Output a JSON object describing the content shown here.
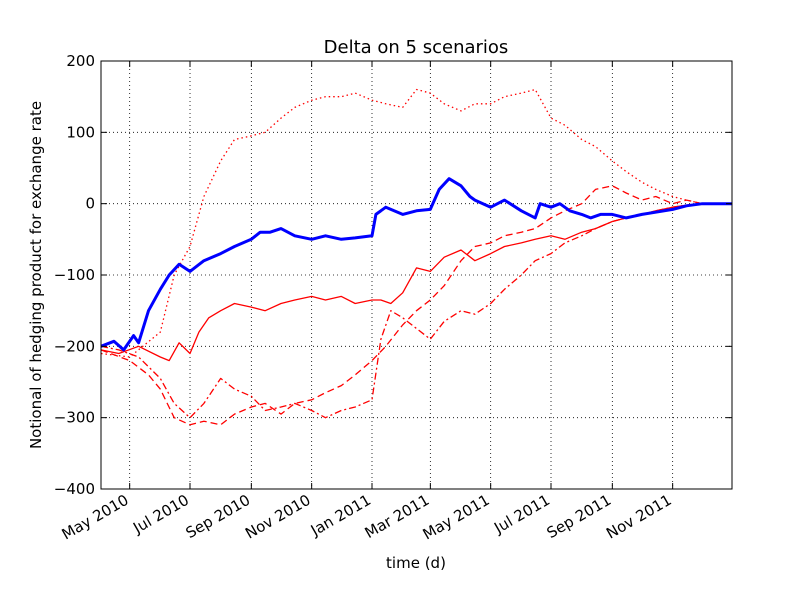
{
  "chart_data": {
    "type": "line",
    "title": "Delta on 5 scenarios",
    "xlabel": "time (d)",
    "ylabel": "Notional of hedging product for exchange rate",
    "x_axis": {
      "type": "date",
      "range": [
        "2010-04-02",
        "2011-12-31"
      ],
      "tick_values": [
        "2010-05-01",
        "2010-07-01",
        "2010-09-01",
        "2010-11-01",
        "2011-01-01",
        "2011-03-01",
        "2011-05-01",
        "2011-07-01",
        "2011-09-01",
        "2011-11-01"
      ],
      "tick_labels": [
        "May 2010",
        "Jul 2010",
        "Sep 2010",
        "Nov 2010",
        "Jan 2011",
        "Mar 2011",
        "May 2011",
        "Jul 2011",
        "Sep 2011",
        "Nov 2011"
      ]
    },
    "y_axis": {
      "range": [
        -400,
        200
      ],
      "tick_values": [
        -400,
        -300,
        -200,
        -100,
        0,
        100,
        200
      ],
      "tick_labels": [
        "−400",
        "−300",
        "−200",
        "−100",
        "0",
        "100",
        "200"
      ]
    },
    "grid": true,
    "series": [
      {
        "color": "#0000ff",
        "style": "solid",
        "width": 3,
        "x": [
          "2010-04-02",
          "2010-04-15",
          "2010-04-25",
          "2010-05-05",
          "2010-05-10",
          "2010-05-20",
          "2010-06-01",
          "2010-06-10",
          "2010-06-20",
          "2010-07-01",
          "2010-07-15",
          "2010-08-01",
          "2010-08-15",
          "2010-09-01",
          "2010-09-10",
          "2010-09-20",
          "2010-10-01",
          "2010-10-15",
          "2010-11-01",
          "2010-11-15",
          "2010-12-01",
          "2010-12-15",
          "2011-01-01",
          "2011-01-05",
          "2011-01-15",
          "2011-02-01",
          "2011-02-15",
          "2011-03-01",
          "2011-03-10",
          "2011-03-20",
          "2011-04-01",
          "2011-04-10",
          "2011-04-15",
          "2011-05-01",
          "2011-05-15",
          "2011-06-01",
          "2011-06-15",
          "2011-06-20",
          "2011-07-01",
          "2011-07-10",
          "2011-07-20",
          "2011-08-01",
          "2011-08-10",
          "2011-08-20",
          "2011-09-01",
          "2011-09-15",
          "2011-10-01",
          "2011-10-15",
          "2011-11-01",
          "2011-11-15",
          "2011-12-01",
          "2011-12-31"
        ],
        "y": [
          -200,
          -193,
          -205,
          -185,
          -195,
          -150,
          -120,
          -100,
          -85,
          -95,
          -80,
          -70,
          -60,
          -50,
          -40,
          -40,
          -35,
          -45,
          -50,
          -45,
          -50,
          -48,
          -45,
          -15,
          -5,
          -15,
          -10,
          -8,
          20,
          35,
          25,
          10,
          5,
          -5,
          5,
          -10,
          -20,
          0,
          -5,
          0,
          -10,
          -15,
          -20,
          -15,
          -15,
          -20,
          -15,
          -12,
          -8,
          -3,
          0,
          0
        ]
      },
      {
        "color": "#ff0000",
        "style": "solid",
        "width": 1.3,
        "x": [
          "2010-04-02",
          "2010-04-20",
          "2010-05-10",
          "2010-06-01",
          "2010-06-10",
          "2010-06-20",
          "2010-07-01",
          "2010-07-10",
          "2010-07-20",
          "2010-08-01",
          "2010-08-15",
          "2010-09-01",
          "2010-09-15",
          "2010-10-01",
          "2010-10-15",
          "2010-11-01",
          "2010-11-15",
          "2010-12-01",
          "2010-12-15",
          "2011-01-01",
          "2011-01-10",
          "2011-01-20",
          "2011-02-01",
          "2011-02-15",
          "2011-03-01",
          "2011-03-15",
          "2011-04-01",
          "2011-04-15",
          "2011-05-01",
          "2011-05-15",
          "2011-06-01",
          "2011-06-15",
          "2011-07-01",
          "2011-07-15",
          "2011-08-01",
          "2011-08-15",
          "2011-09-01",
          "2011-09-15",
          "2011-10-01",
          "2011-10-15",
          "2011-11-01",
          "2011-11-15",
          "2011-12-01",
          "2011-12-31"
        ],
        "y": [
          -205,
          -210,
          -200,
          -215,
          -220,
          -195,
          -210,
          -180,
          -160,
          -150,
          -140,
          -145,
          -150,
          -140,
          -135,
          -130,
          -135,
          -130,
          -140,
          -135,
          -135,
          -140,
          -125,
          -90,
          -95,
          -75,
          -65,
          -80,
          -70,
          -60,
          -55,
          -50,
          -45,
          -50,
          -40,
          -35,
          -25,
          -20,
          -15,
          -10,
          -5,
          -2,
          0,
          0
        ]
      },
      {
        "color": "#ff0000",
        "style": "dashed",
        "width": 1.3,
        "x": [
          "2010-04-02",
          "2010-05-01",
          "2010-05-20",
          "2010-06-01",
          "2010-06-15",
          "2010-07-01",
          "2010-07-15",
          "2010-08-01",
          "2010-08-15",
          "2010-09-01",
          "2010-09-15",
          "2010-10-01",
          "2010-10-15",
          "2010-11-01",
          "2010-11-15",
          "2010-12-01",
          "2010-12-15",
          "2011-01-01",
          "2011-01-15",
          "2011-02-01",
          "2011-02-15",
          "2011-03-01",
          "2011-03-15",
          "2011-04-01",
          "2011-04-15",
          "2011-05-01",
          "2011-05-15",
          "2011-06-01",
          "2011-06-15",
          "2011-07-01",
          "2011-07-15",
          "2011-08-01",
          "2011-08-15",
          "2011-09-01",
          "2011-09-15",
          "2011-10-01",
          "2011-10-15",
          "2011-11-01",
          "2011-11-15",
          "2011-12-01",
          "2011-12-31"
        ],
        "y": [
          -205,
          -220,
          -240,
          -260,
          -300,
          -310,
          -305,
          -310,
          -295,
          -285,
          -280,
          -295,
          -280,
          -275,
          -265,
          -255,
          -240,
          -220,
          -200,
          -170,
          -150,
          -135,
          -115,
          -80,
          -60,
          -55,
          -45,
          -40,
          -35,
          -20,
          -10,
          0,
          20,
          25,
          15,
          5,
          10,
          0,
          5,
          0,
          0
        ]
      },
      {
        "color": "#ff0000",
        "style": "dashdot",
        "width": 1.3,
        "x": [
          "2010-04-02",
          "2010-04-20",
          "2010-05-10",
          "2010-06-01",
          "2010-06-15",
          "2010-07-01",
          "2010-07-15",
          "2010-08-01",
          "2010-08-15",
          "2010-09-01",
          "2010-09-15",
          "2010-10-01",
          "2010-10-15",
          "2010-11-01",
          "2010-11-15",
          "2010-12-01",
          "2010-12-15",
          "2011-01-01",
          "2011-01-10",
          "2011-01-20",
          "2011-02-01",
          "2011-02-15",
          "2011-03-01",
          "2011-03-15",
          "2011-04-01",
          "2011-04-15",
          "2011-05-01",
          "2011-05-15",
          "2011-06-01",
          "2011-06-15",
          "2011-07-01",
          "2011-07-15",
          "2011-08-01",
          "2011-08-15",
          "2011-09-01",
          "2011-09-15",
          "2011-10-01",
          "2011-10-15",
          "2011-11-01",
          "2011-11-15",
          "2011-12-01",
          "2011-12-31"
        ],
        "y": [
          -200,
          -205,
          -215,
          -245,
          -280,
          -300,
          -280,
          -245,
          -260,
          -270,
          -290,
          -285,
          -280,
          -290,
          -300,
          -290,
          -285,
          -275,
          -190,
          -150,
          -160,
          -175,
          -190,
          -165,
          -150,
          -155,
          -140,
          -120,
          -100,
          -80,
          -70,
          -55,
          -45,
          -35,
          -25,
          -20,
          -15,
          -10,
          -5,
          -2,
          0,
          0
        ]
      },
      {
        "color": "#ff0000",
        "style": "dotted",
        "width": 1.3,
        "x": [
          "2010-04-02",
          "2010-05-01",
          "2010-06-01",
          "2010-06-15",
          "2010-07-01",
          "2010-07-15",
          "2010-08-01",
          "2010-08-15",
          "2010-09-01",
          "2010-09-15",
          "2010-10-01",
          "2010-10-15",
          "2010-11-01",
          "2010-11-15",
          "2010-12-01",
          "2010-12-15",
          "2011-01-01",
          "2011-01-15",
          "2011-02-01",
          "2011-02-15",
          "2011-03-01",
          "2011-03-15",
          "2011-04-01",
          "2011-04-15",
          "2011-05-01",
          "2011-05-15",
          "2011-06-01",
          "2011-06-15",
          "2011-07-01",
          "2011-07-15",
          "2011-08-01",
          "2011-08-15",
          "2011-09-01",
          "2011-09-15",
          "2011-10-01",
          "2011-10-15",
          "2011-11-01",
          "2011-11-15",
          "2011-12-01",
          "2011-12-31"
        ],
        "y": [
          -210,
          -215,
          -180,
          -100,
          -60,
          10,
          60,
          90,
          95,
          100,
          120,
          135,
          145,
          150,
          150,
          155,
          145,
          140,
          135,
          160,
          155,
          140,
          130,
          140,
          140,
          150,
          155,
          160,
          120,
          110,
          90,
          80,
          60,
          45,
          30,
          20,
          10,
          5,
          0,
          0
        ]
      }
    ]
  }
}
